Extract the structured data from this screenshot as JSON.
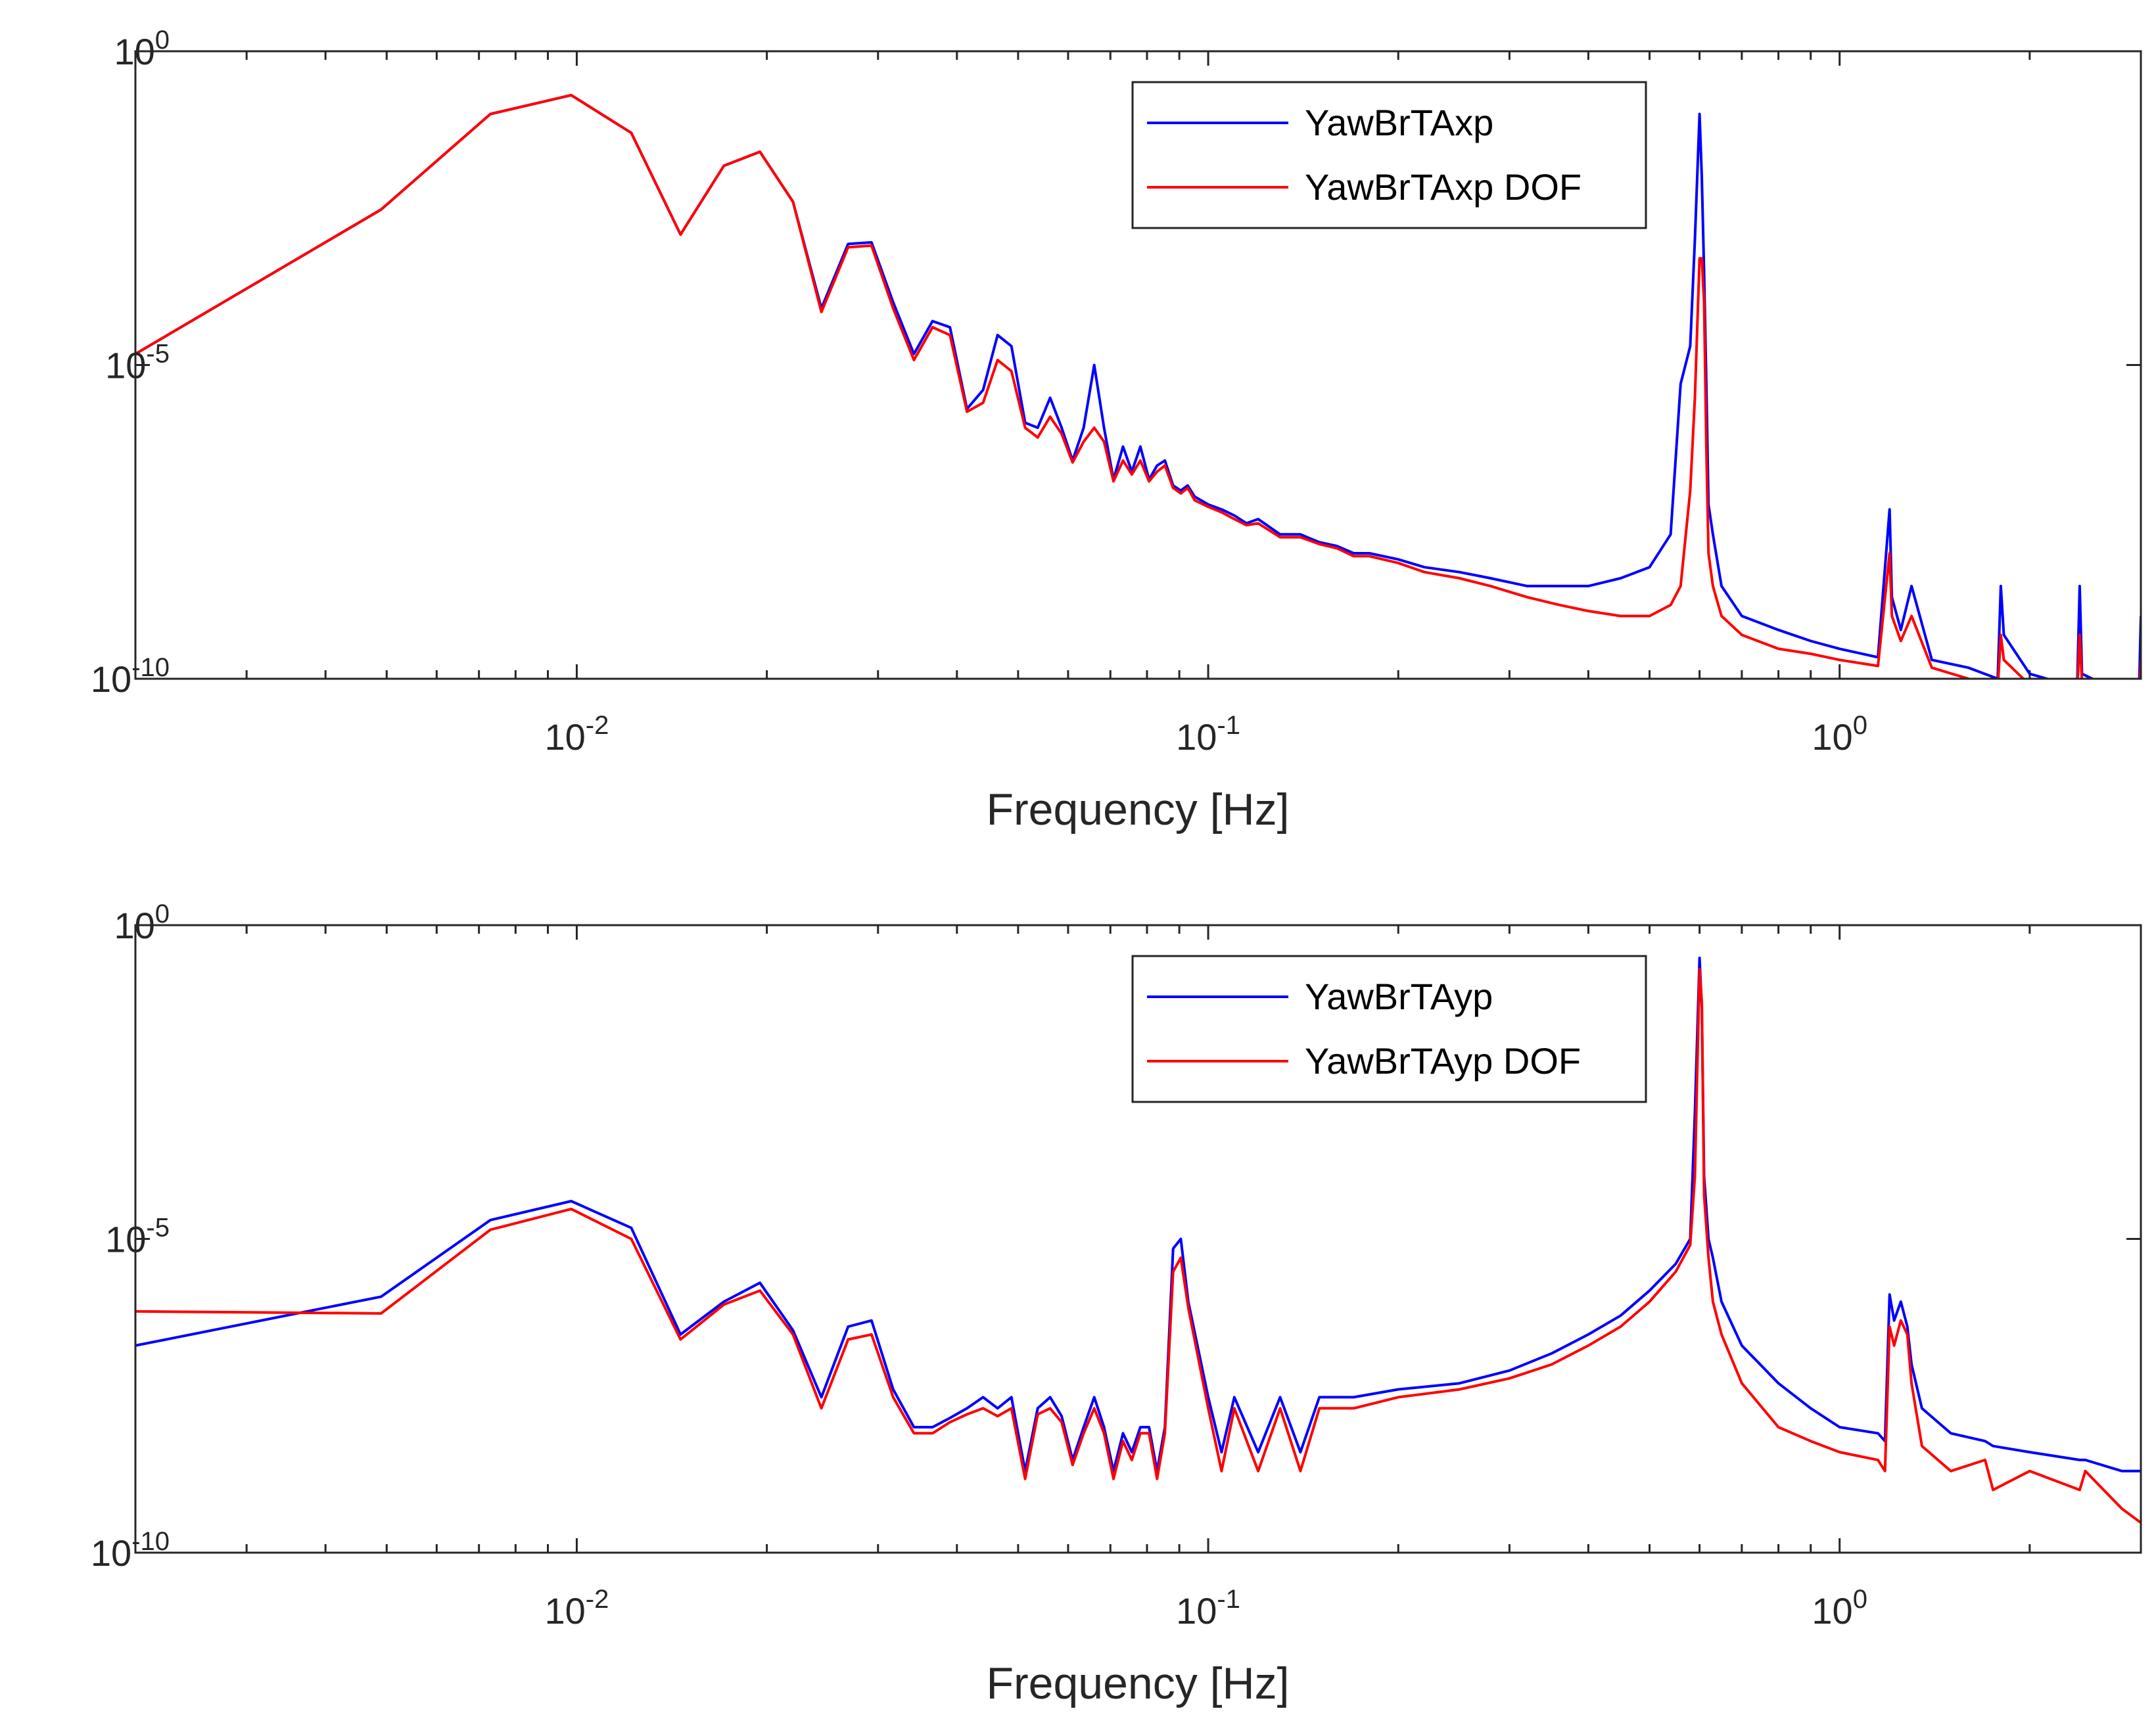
{
  "chart_data": [
    {
      "type": "line",
      "xscale": "log",
      "yscale": "log",
      "xlim": [
        0.002,
        3.0
      ],
      "ylim": [
        1e-10,
        1
      ],
      "xlabel": "Frequency [Hz]",
      "ylabel": "",
      "xticks": [
        {
          "base": "10",
          "exp": "-2",
          "value": 0.01
        },
        {
          "base": "10",
          "exp": "-1",
          "value": 0.1
        },
        {
          "base": "10",
          "exp": "0",
          "value": 1
        }
      ],
      "yticks": [
        {
          "base": "10",
          "exp": "0",
          "value": 1
        },
        {
          "base": "10",
          "exp": "-5",
          "value": 1e-05
        },
        {
          "base": "10",
          "exp": "-10",
          "value": 1e-10
        }
      ],
      "legend_position": "top-right",
      "series": [
        {
          "name": "YawBrTAxp",
          "color": "#0000ff",
          "x": [
            0.002,
            0.0049,
            0.0073,
            0.0098,
            0.0122,
            0.0146,
            0.0171,
            0.0195,
            0.022,
            0.0244,
            0.0269,
            0.0293,
            0.0317,
            0.0342,
            0.0366,
            0.039,
            0.0415,
            0.044,
            0.0464,
            0.0488,
            0.0513,
            0.0537,
            0.0562,
            0.0586,
            0.061,
            0.0635,
            0.066,
            0.0684,
            0.0708,
            0.0733,
            0.0757,
            0.0781,
            0.0806,
            0.083,
            0.0854,
            0.088,
            0.0905,
            0.0928,
            0.0952,
            0.1,
            0.105,
            0.11,
            0.115,
            0.12,
            0.13,
            0.14,
            0.15,
            0.16,
            0.17,
            0.18,
            0.2,
            0.22,
            0.25,
            0.28,
            0.32,
            0.36,
            0.4,
            0.45,
            0.5,
            0.54,
            0.56,
            0.58,
            0.59,
            0.6,
            0.605,
            0.61,
            0.615,
            0.62,
            0.63,
            0.65,
            0.7,
            0.8,
            0.9,
            1.0,
            1.15,
            1.2,
            1.21,
            1.25,
            1.3,
            1.4,
            1.6,
            1.78,
            1.8,
            1.82,
            2.0,
            2.3,
            2.38,
            2.4,
            2.42,
            2.7,
            2.98,
            3.0
          ],
          "values": [
            1.5e-05,
            0.003,
            0.1,
            0.2,
            0.05,
            0.0012,
            0.015,
            0.025,
            0.004,
            8e-05,
            0.00085,
            0.0009,
            0.0001,
            1.5e-05,
            5e-05,
            4e-05,
            2e-06,
            4e-06,
            3e-05,
            2e-05,
            1.2e-06,
            1e-06,
            3e-06,
            1e-06,
            3e-07,
            1e-06,
            1e-05,
            1e-06,
            1.5e-07,
            5e-07,
            2e-07,
            5e-07,
            1.5e-07,
            2.5e-07,
            3e-07,
            1.2e-07,
            1e-07,
            1.2e-07,
            8e-08,
            6e-08,
            5e-08,
            4e-08,
            3e-08,
            3.5e-08,
            2e-08,
            2e-08,
            1.5e-08,
            1.3e-08,
            1e-08,
            1e-08,
            8e-09,
            6e-09,
            5e-09,
            4e-09,
            3e-09,
            3e-09,
            3e-09,
            4e-09,
            6e-09,
            2e-08,
            5e-06,
            2e-05,
            0.001,
            0.1,
            0.01,
            0.0003,
            5e-06,
            6e-08,
            2e-08,
            3e-09,
            1e-09,
            6e-10,
            4e-10,
            3e-10,
            2.2e-10,
            5e-08,
            2e-09,
            6e-10,
            3e-09,
            2e-10,
            1.5e-10,
            1e-10,
            3e-09,
            5e-10,
            1.2e-10,
            8e-11,
            1e-10,
            3e-09,
            1.2e-10,
            7e-11,
            6e-11,
            1e-09
          ]
        },
        {
          "name": "YawBrTAxp DOF",
          "color": "#ff0000",
          "x": [
            0.002,
            0.0049,
            0.0073,
            0.0098,
            0.0122,
            0.0146,
            0.0171,
            0.0195,
            0.022,
            0.0244,
            0.0269,
            0.0293,
            0.0317,
            0.0342,
            0.0366,
            0.039,
            0.0415,
            0.044,
            0.0464,
            0.0488,
            0.0513,
            0.0537,
            0.0562,
            0.0586,
            0.061,
            0.0635,
            0.066,
            0.0684,
            0.0708,
            0.0733,
            0.0757,
            0.0781,
            0.0806,
            0.083,
            0.0854,
            0.088,
            0.0905,
            0.0928,
            0.0952,
            0.1,
            0.105,
            0.11,
            0.115,
            0.12,
            0.13,
            0.14,
            0.15,
            0.16,
            0.17,
            0.18,
            0.2,
            0.22,
            0.25,
            0.28,
            0.32,
            0.36,
            0.4,
            0.45,
            0.5,
            0.54,
            0.56,
            0.58,
            0.59,
            0.6,
            0.605,
            0.61,
            0.615,
            0.62,
            0.63,
            0.65,
            0.7,
            0.8,
            0.9,
            1.0,
            1.15,
            1.2,
            1.21,
            1.25,
            1.3,
            1.4,
            1.6,
            1.78,
            1.8,
            1.82,
            2.0,
            2.3,
            2.38,
            2.4,
            2.42,
            2.7,
            2.98,
            3.0
          ],
          "values": [
            1.5e-05,
            0.003,
            0.1,
            0.2,
            0.05,
            0.0012,
            0.015,
            0.025,
            0.004,
            7e-05,
            0.00075,
            0.0008,
            8e-05,
            1.2e-05,
            4e-05,
            3e-05,
            1.8e-06,
            2.5e-06,
            1.2e-05,
            8e-06,
            1e-06,
            7e-07,
            1.5e-06,
            8e-07,
            2.8e-07,
            6e-07,
            1e-06,
            6e-07,
            1.4e-07,
            3e-07,
            1.8e-07,
            3e-07,
            1.4e-07,
            2e-07,
            2.5e-07,
            1.1e-07,
            9e-08,
            1.1e-07,
            7e-08,
            5.5e-08,
            4.5e-08,
            3.5e-08,
            2.8e-08,
            3e-08,
            1.8e-08,
            1.8e-08,
            1.4e-08,
            1.2e-08,
            9e-09,
            9e-09,
            7e-09,
            5e-09,
            4e-09,
            3e-09,
            2e-09,
            1.5e-09,
            1.2e-09,
            1e-09,
            1e-09,
            1.5e-09,
            3e-09,
            1e-07,
            3e-06,
            0.0005,
            0.0005,
            0.0001,
            5e-07,
            1e-08,
            3e-09,
            1e-09,
            5e-10,
            3e-10,
            2.5e-10,
            2e-10,
            1.6e-10,
            1e-08,
            1e-09,
            4e-10,
            1e-09,
            1.5e-10,
            1e-10,
            7e-11,
            5e-10,
            2e-10,
            8e-11,
            6e-11,
            7e-11,
            5e-10,
            9e-11,
            5e-11,
            4e-11,
            2e-10
          ]
        }
      ]
    },
    {
      "type": "line",
      "xscale": "log",
      "yscale": "log",
      "xlim": [
        0.002,
        3.0
      ],
      "ylim": [
        1e-10,
        1
      ],
      "xlabel": "Frequency [Hz]",
      "ylabel": "",
      "xticks": [
        {
          "base": "10",
          "exp": "-2",
          "value": 0.01
        },
        {
          "base": "10",
          "exp": "-1",
          "value": 0.1
        },
        {
          "base": "10",
          "exp": "0",
          "value": 1
        }
      ],
      "yticks": [
        {
          "base": "10",
          "exp": "0",
          "value": 1
        },
        {
          "base": "10",
          "exp": "-5",
          "value": 1e-05
        },
        {
          "base": "10",
          "exp": "-10",
          "value": 1e-10
        }
      ],
      "legend_position": "top-right",
      "series": [
        {
          "name": "YawBrTAyp",
          "color": "#0000ff",
          "x": [
            0.002,
            0.0049,
            0.0073,
            0.0098,
            0.0122,
            0.0146,
            0.0171,
            0.0195,
            0.022,
            0.0244,
            0.0269,
            0.0293,
            0.0317,
            0.0342,
            0.0366,
            0.039,
            0.0415,
            0.044,
            0.0464,
            0.0488,
            0.0513,
            0.0537,
            0.0562,
            0.0586,
            0.061,
            0.0635,
            0.066,
            0.0684,
            0.0708,
            0.0733,
            0.0757,
            0.0781,
            0.0806,
            0.083,
            0.0854,
            0.088,
            0.0905,
            0.093,
            0.1,
            0.105,
            0.11,
            0.12,
            0.13,
            0.14,
            0.15,
            0.17,
            0.2,
            0.25,
            0.3,
            0.35,
            0.4,
            0.45,
            0.5,
            0.55,
            0.58,
            0.59,
            0.6,
            0.605,
            0.61,
            0.62,
            0.63,
            0.65,
            0.7,
            0.8,
            0.9,
            1.0,
            1.15,
            1.18,
            1.2,
            1.22,
            1.25,
            1.28,
            1.3,
            1.35,
            1.5,
            1.7,
            1.75,
            2.0,
            2.4,
            2.45,
            2.8,
            3.0
          ],
          "values": [
            2e-07,
            1.2e-06,
            2e-05,
            4e-05,
            1.5e-05,
            3e-07,
            1e-06,
            2e-06,
            3.5e-07,
            3e-08,
            4e-07,
            5e-07,
            4e-08,
            1e-08,
            1e-08,
            1.4e-08,
            2e-08,
            3e-08,
            2e-08,
            3e-08,
            2e-09,
            2e-08,
            3e-08,
            1.5e-08,
            3e-09,
            1e-08,
            3e-08,
            1e-08,
            2e-09,
            8e-09,
            4e-09,
            1e-08,
            1e-08,
            2e-09,
            1e-08,
            7e-06,
            1e-05,
            1e-06,
            3e-08,
            4e-09,
            3e-08,
            4e-09,
            3e-08,
            4e-09,
            3e-08,
            3e-08,
            4e-08,
            5e-08,
            8e-08,
            1.5e-07,
            3e-07,
            6e-07,
            1.5e-06,
            4e-06,
            1e-05,
            0.001,
            0.3,
            0.05,
            0.0001,
            1e-05,
            5e-06,
            1e-06,
            2e-07,
            5e-08,
            2e-08,
            1e-08,
            8e-09,
            6e-09,
            1.3e-06,
            5e-07,
            1e-06,
            4e-07,
            1e-07,
            2e-08,
            8e-09,
            6e-09,
            5e-09,
            4e-09,
            3e-09,
            3e-09,
            2e-09,
            2e-09
          ]
        },
        {
          "name": "YawBrTAyp DOF",
          "color": "#ff0000",
          "x": [
            0.002,
            0.0049,
            0.0073,
            0.0098,
            0.0122,
            0.0146,
            0.0171,
            0.0195,
            0.022,
            0.0244,
            0.0269,
            0.0293,
            0.0317,
            0.0342,
            0.0366,
            0.039,
            0.0415,
            0.044,
            0.0464,
            0.0488,
            0.0513,
            0.0537,
            0.0562,
            0.0586,
            0.061,
            0.0635,
            0.066,
            0.0684,
            0.0708,
            0.0733,
            0.0757,
            0.0781,
            0.0806,
            0.083,
            0.0854,
            0.088,
            0.0905,
            0.093,
            0.1,
            0.105,
            0.11,
            0.12,
            0.13,
            0.14,
            0.15,
            0.17,
            0.2,
            0.25,
            0.3,
            0.35,
            0.4,
            0.45,
            0.5,
            0.55,
            0.58,
            0.59,
            0.6,
            0.605,
            0.61,
            0.62,
            0.63,
            0.65,
            0.7,
            0.8,
            0.9,
            1.0,
            1.15,
            1.18,
            1.2,
            1.22,
            1.25,
            1.28,
            1.3,
            1.35,
            1.5,
            1.7,
            1.75,
            2.0,
            2.4,
            2.45,
            2.8,
            3.0
          ],
          "values": [
            7e-07,
            6.5e-07,
            1.4e-05,
            3e-05,
            1e-05,
            2.5e-07,
            9e-07,
            1.5e-06,
            3e-07,
            2e-08,
            2.5e-07,
            3e-07,
            3e-08,
            8e-09,
            8e-09,
            1.2e-08,
            1.6e-08,
            2e-08,
            1.5e-08,
            2e-08,
            1.5e-09,
            1.6e-08,
            2e-08,
            1.2e-08,
            2.5e-09,
            8e-09,
            2e-08,
            8e-09,
            1.5e-09,
            6e-09,
            3e-09,
            8e-09,
            8e-09,
            1.5e-09,
            8e-09,
            3e-06,
            5e-06,
            8e-07,
            2e-08,
            2e-09,
            2e-08,
            2e-09,
            2e-08,
            2e-09,
            2e-08,
            2e-08,
            3e-08,
            4e-08,
            6e-08,
            1e-07,
            2e-07,
            4e-07,
            1e-06,
            3e-06,
            8e-06,
            0.0001,
            0.2,
            0.06,
            5e-05,
            5e-06,
            1e-06,
            3e-07,
            5e-08,
            1e-08,
            6e-09,
            4e-09,
            3e-09,
            2e-09,
            4e-07,
            2e-07,
            5e-07,
            3e-07,
            5e-08,
            5e-09,
            2e-09,
            3e-09,
            1e-09,
            2e-09,
            1e-09,
            2e-09,
            5e-10,
            3e-10
          ]
        }
      ]
    }
  ]
}
